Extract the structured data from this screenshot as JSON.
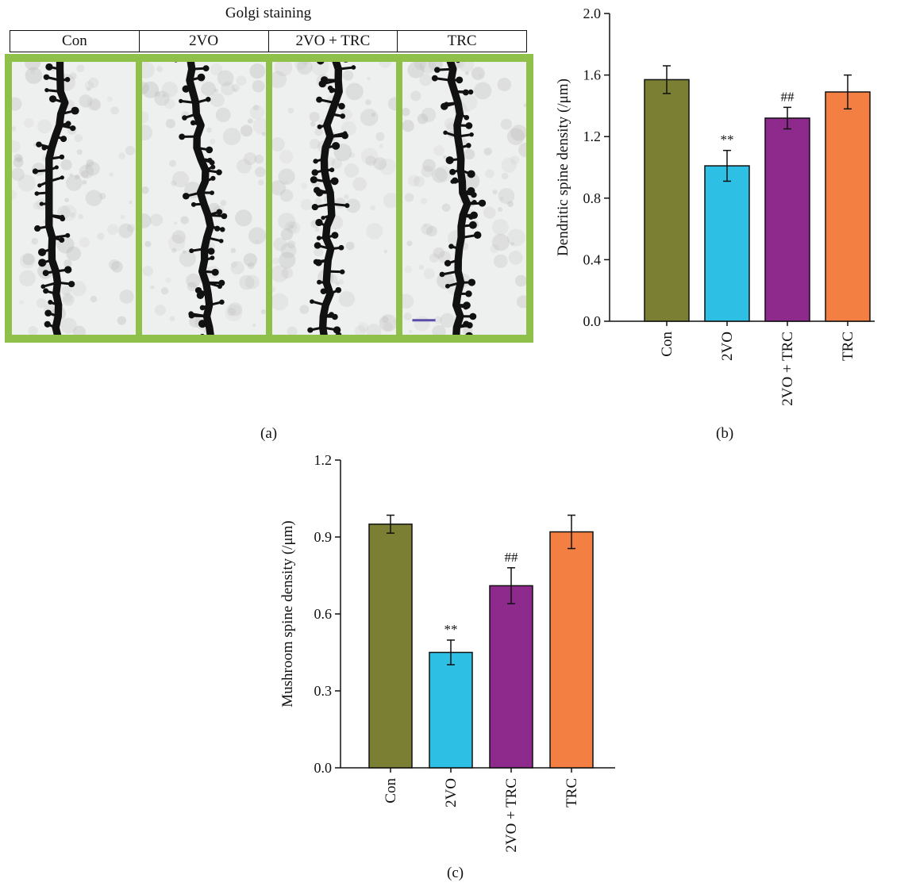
{
  "panel_a": {
    "title": "Golgi staining",
    "columns": [
      "Con",
      "2VO",
      "2VO + TRC",
      "TRC"
    ],
    "label": "(a)",
    "frame_color": "#8fc04a",
    "scale_bar_color": "#5b4ea8"
  },
  "chart_data": [
    {
      "id": "b",
      "type": "bar",
      "panel_label": "(b)",
      "categories": [
        "Con",
        "2VO",
        "2VO + TRC",
        "TRC"
      ],
      "values": [
        1.57,
        1.01,
        1.32,
        1.49
      ],
      "errors": [
        0.09,
        0.1,
        0.07,
        0.11
      ],
      "annotations": [
        "",
        "**",
        "##",
        ""
      ],
      "colors": [
        "#7b7f33",
        "#2ec0e4",
        "#8e2a8b",
        "#f47f43"
      ],
      "ylabel": "Dendritic spine density (/μm)",
      "ylim": [
        0,
        2.0
      ],
      "yticks": [
        0.0,
        0.4,
        0.8,
        1.2,
        1.6,
        2.0
      ],
      "ytick_labels": [
        "0.0",
        "0.4",
        "0.8",
        "1.2",
        "1.6",
        "2.0"
      ]
    },
    {
      "id": "c",
      "type": "bar",
      "panel_label": "(c)",
      "categories": [
        "Con",
        "2VO",
        "2VO + TRC",
        "TRC"
      ],
      "values": [
        0.95,
        0.45,
        0.71,
        0.92
      ],
      "errors": [
        0.035,
        0.048,
        0.07,
        0.065
      ],
      "annotations": [
        "",
        "**",
        "##",
        ""
      ],
      "colors": [
        "#7b7f33",
        "#2ec0e4",
        "#8e2a8b",
        "#f47f43"
      ],
      "ylabel": "Mushroom spine density (/μm)",
      "ylim": [
        0,
        1.2
      ],
      "yticks": [
        0.0,
        0.3,
        0.6,
        0.9,
        1.2
      ],
      "ytick_labels": [
        "0.0",
        "0.3",
        "0.6",
        "0.9",
        "1.2"
      ]
    }
  ]
}
